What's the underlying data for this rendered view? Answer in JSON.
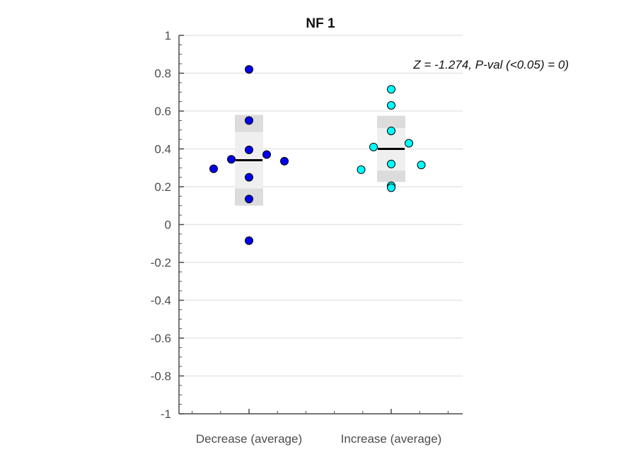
{
  "chart_data": {
    "type": "scatter",
    "title": "NF 1",
    "annotation": "Z = -1.274, P-val (<0.05) = 0)",
    "xlabel": "",
    "ylabel": "",
    "ylim": [
      -1,
      1
    ],
    "yticks": [
      "1",
      "0.8",
      "0.6",
      "0.4",
      "0.2",
      "0",
      "-0.2",
      "-0.4",
      "-0.6",
      "-0.8",
      "-1"
    ],
    "grid": true,
    "categories": [
      "Decrease (average)",
      "Increase (average)"
    ],
    "series": [
      {
        "category": "Decrease (average)",
        "color": "#0000ee",
        "mean": 0.34,
        "sem_band": [
          0.19,
          0.49
        ],
        "sd_band": [
          0.1,
          0.58
        ],
        "points": [
          {
            "offset": 0,
            "y": 0.82
          },
          {
            "offset": 0,
            "y": 0.55
          },
          {
            "offset": 0,
            "y": 0.395
          },
          {
            "offset": 1,
            "y": 0.37
          },
          {
            "offset": -1,
            "y": 0.345
          },
          {
            "offset": 2,
            "y": 0.335
          },
          {
            "offset": -2,
            "y": 0.295
          },
          {
            "offset": 0,
            "y": 0.25
          },
          {
            "offset": 0,
            "y": 0.135
          },
          {
            "offset": 0,
            "y": -0.085
          }
        ]
      },
      {
        "category": "Increase (average)",
        "color": "#00ffff",
        "mean": 0.4,
        "sem_band": [
          0.285,
          0.51
        ],
        "sd_band": [
          0.225,
          0.575
        ],
        "points": [
          {
            "offset": 0,
            "y": 0.715
          },
          {
            "offset": 0,
            "y": 0.63
          },
          {
            "offset": 0,
            "y": 0.495
          },
          {
            "offset": 1,
            "y": 0.43
          },
          {
            "offset": -1,
            "y": 0.41
          },
          {
            "offset": 0,
            "y": 0.32
          },
          {
            "offset": 1.7,
            "y": 0.315
          },
          {
            "offset": -1.7,
            "y": 0.29
          },
          {
            "offset": 0,
            "y": 0.205
          },
          {
            "offset": 0,
            "y": 0.195
          }
        ]
      }
    ]
  }
}
